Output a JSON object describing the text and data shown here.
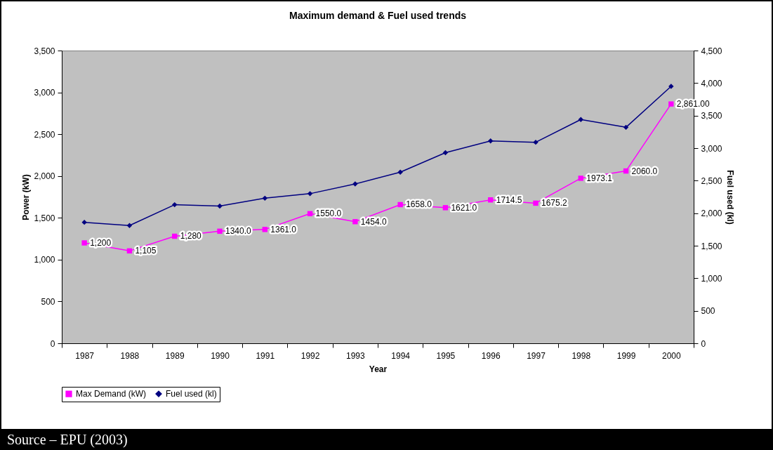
{
  "chart_data": {
    "type": "line",
    "title": "Maximum demand & Fuel used trends",
    "xlabel": "Year",
    "ylabel": "Power (kW)",
    "y2label": "Fuel used (kl)",
    "categories": [
      "1987",
      "1988",
      "1989",
      "1990",
      "1991",
      "1992",
      "1993",
      "1994",
      "1995",
      "1996",
      "1997",
      "1998",
      "1999",
      "2000"
    ],
    "series": [
      {
        "name": "Max Demand (kW)",
        "color": "#ff00ff",
        "marker": "square",
        "values": [
          1200,
          1105,
          1280,
          1340,
          1361,
          1550,
          1454,
          1658,
          1621,
          1714.5,
          1675.2,
          1973.1,
          2060,
          2861
        ],
        "value_labels": [
          "1,200",
          "1,105",
          "1,280",
          "1340.0",
          "1361.0",
          "1550.0",
          "1454.0",
          "1658.0",
          "1621.0",
          "1714.5",
          "1675.2",
          "1973.1",
          "2060.0",
          "2,861.00"
        ]
      },
      {
        "name": "Fuel used (kl)",
        "color": "#000080",
        "marker": "diamond",
        "axis": "y2",
        "values": [
          1860,
          1810,
          2130,
          2110,
          2230,
          2300,
          2450,
          2630,
          2930,
          3110,
          3090,
          3440,
          3320,
          3950
        ]
      }
    ],
    "ylim": [
      0,
      3500
    ],
    "yticks": [
      0,
      500,
      {
        "value": 1000,
        "label": "1,000"
      },
      {
        "value": 1500,
        "label": "1,500"
      },
      {
        "value": 2000,
        "label": "2,000"
      },
      {
        "value": 2500,
        "label": "2,500"
      },
      {
        "value": 3000,
        "label": "3,000"
      },
      {
        "value": 3500,
        "label": "3,500"
      }
    ],
    "y2lim": [
      0,
      4500
    ],
    "y2ticks": [
      0,
      500,
      {
        "value": 1000,
        "label": "1,000"
      },
      {
        "value": 1500,
        "label": "1,500"
      },
      {
        "value": 2000,
        "label": "2,000"
      },
      {
        "value": 2500,
        "label": "2,500"
      },
      {
        "value": 3000,
        "label": "3,000"
      },
      {
        "value": 3500,
        "label": "3,500"
      },
      {
        "value": 4000,
        "label": "4,000"
      },
      {
        "value": 4500,
        "label": "4,500"
      }
    ],
    "legend": "bottom",
    "annotations": [
      "Source – EPU (2003)"
    ]
  }
}
